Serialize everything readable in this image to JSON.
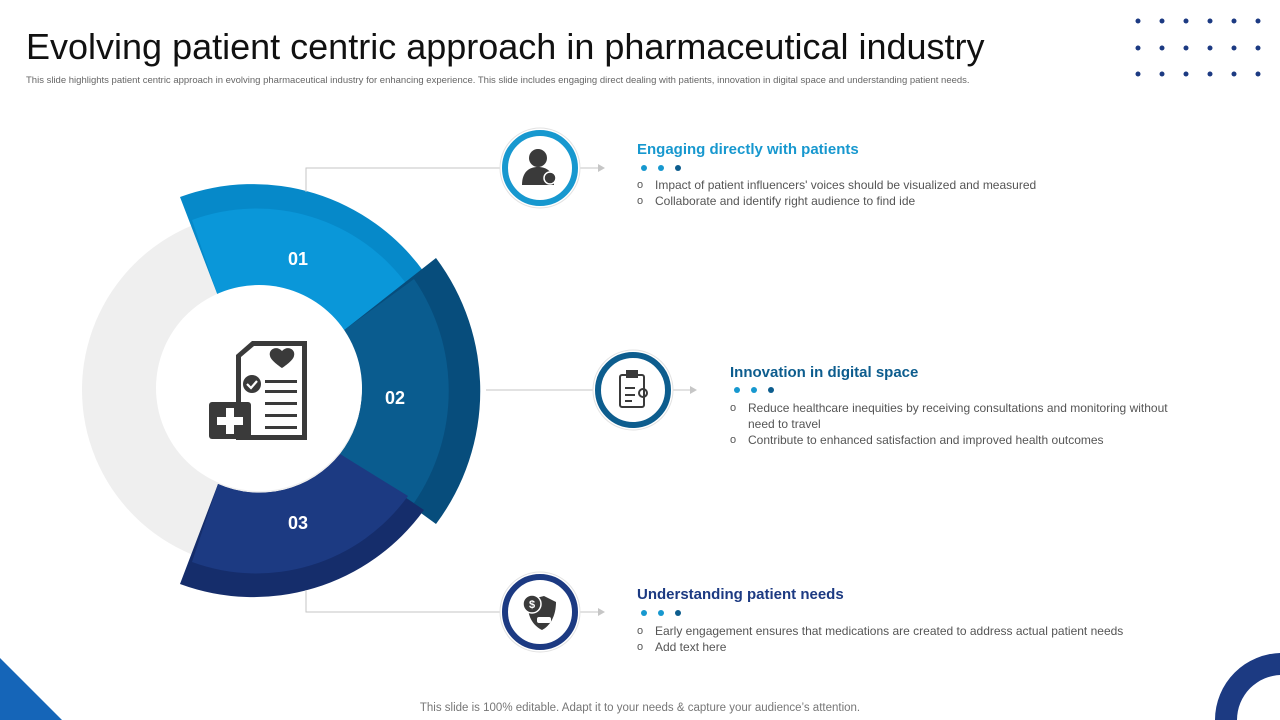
{
  "title": "Evolving patient centric approach in pharmaceutical industry",
  "subtitle": "This slide highlights patient centric approach in evolving pharmaceutical industry for enhancing experience. This slide includes engaging direct dealing with patients, innovation in digital space and understanding patient needs.",
  "colors": {
    "segment_1": "#0a97d9",
    "segment_2": "#0a5c8f",
    "segment_3": "#1c3a82",
    "ring_background": "#efefef",
    "heading_1": "#1798cf",
    "heading_2": "#0d5d8e",
    "heading_3": "#1c3a82"
  },
  "segments": [
    {
      "number": "01",
      "icon": "patient-user-icon"
    },
    {
      "number": "02",
      "icon": "clipboard-checkup-icon"
    },
    {
      "number": "03",
      "icon": "dollar-shield-icon"
    }
  ],
  "center_icon": "medical-report-icon",
  "items": [
    {
      "heading": "Engaging directly with patients",
      "bullets": [
        "Impact of patient influencers' voices should be visualized and measured",
        "Collaborate and identify right audience to find ide"
      ]
    },
    {
      "heading": "Innovation in digital space",
      "bullets": [
        "Reduce healthcare inequities by receiving consultations and monitoring without need to travel",
        "Contribute to enhanced satisfaction and improved health outcomes"
      ]
    },
    {
      "heading": "Understanding patient needs",
      "bullets": [
        "Early engagement ensures that medications are created to address actual patient needs",
        "Add text here"
      ]
    }
  ],
  "footer": "This slide is 100% editable. Adapt it to your needs & capture your audience’s attention."
}
